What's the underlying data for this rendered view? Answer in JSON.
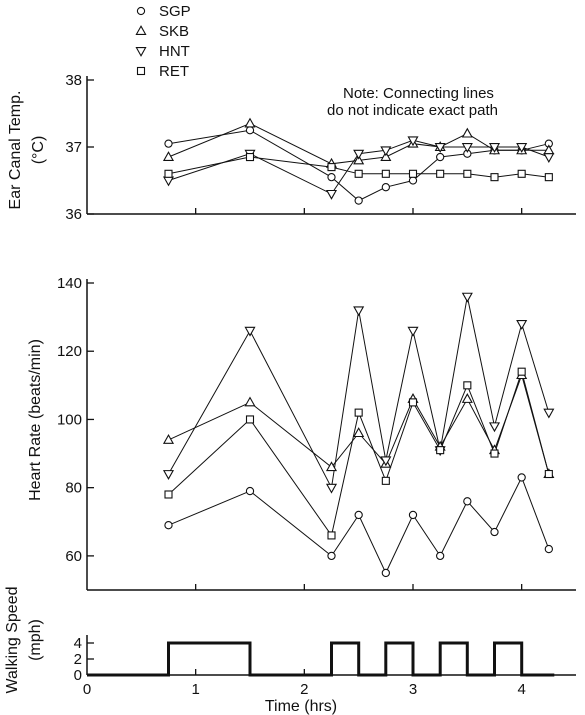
{
  "chart_data": [
    {
      "type": "line",
      "ylabel": "Ear Canal Temp. (°C)",
      "ylabel_lines": [
        "Ear Canal Temp.",
        "(°C)"
      ],
      "ylim": [
        36,
        38
      ],
      "yticks": [
        36,
        37,
        38
      ],
      "xlim": [
        0,
        4.5
      ],
      "note": [
        "Note: Connecting lines",
        "do not indicate exact path"
      ],
      "legend": [
        "SGP",
        "SKB",
        "HNT",
        "RET"
      ],
      "series": [
        {
          "name": "SGP",
          "marker": "circle",
          "x": [
            0.75,
            1.5,
            2.25,
            2.5,
            2.75,
            3.0,
            3.25,
            3.5,
            3.75,
            4.0,
            4.25
          ],
          "y": [
            37.05,
            37.25,
            36.55,
            36.2,
            36.4,
            36.5,
            36.85,
            36.9,
            36.95,
            36.95,
            37.05
          ]
        },
        {
          "name": "SKB",
          "marker": "triangle-up",
          "x": [
            0.75,
            1.5,
            2.25,
            2.5,
            2.75,
            3.0,
            3.25,
            3.5,
            3.75,
            4.0,
            4.25
          ],
          "y": [
            36.85,
            37.35,
            36.75,
            36.8,
            36.85,
            37.05,
            37.0,
            37.2,
            36.95,
            36.95,
            36.95
          ]
        },
        {
          "name": "HNT",
          "marker": "triangle-down",
          "x": [
            0.75,
            1.5,
            2.25,
            2.5,
            2.75,
            3.0,
            3.25,
            3.5,
            3.75,
            4.0,
            4.25
          ],
          "y": [
            36.5,
            36.9,
            36.3,
            36.9,
            36.95,
            37.1,
            37.0,
            37.0,
            37.0,
            37.0,
            36.85
          ]
        },
        {
          "name": "RET",
          "marker": "square",
          "x": [
            0.75,
            1.5,
            2.25,
            2.5,
            2.75,
            3.0,
            3.25,
            3.5,
            3.75,
            4.0,
            4.25
          ],
          "y": [
            36.6,
            36.85,
            36.7,
            36.6,
            36.6,
            36.6,
            36.6,
            36.6,
            36.55,
            36.6,
            36.55
          ]
        }
      ]
    },
    {
      "type": "line",
      "ylabel": "Heart Rate (beats/min)",
      "ylim": [
        50,
        140
      ],
      "yticks": [
        60,
        80,
        100,
        120,
        140
      ],
      "xlim": [
        0,
        4.5
      ],
      "series": [
        {
          "name": "SGP",
          "marker": "circle",
          "x": [
            0.75,
            1.5,
            2.25,
            2.5,
            2.75,
            3.0,
            3.25,
            3.5,
            3.75,
            4.0,
            4.25
          ],
          "y": [
            69,
            79,
            60,
            72,
            55,
            72,
            60,
            76,
            67,
            83,
            62
          ]
        },
        {
          "name": "SKB",
          "marker": "triangle-up",
          "x": [
            0.75,
            1.5,
            2.25,
            2.5,
            2.75,
            3.0,
            3.25,
            3.5,
            3.75,
            4.0,
            4.25
          ],
          "y": [
            94,
            105,
            86,
            96,
            87,
            106,
            92,
            106,
            91,
            113,
            84
          ]
        },
        {
          "name": "HNT",
          "marker": "triangle-down",
          "x": [
            0.75,
            1.5,
            2.25,
            2.5,
            2.75,
            3.0,
            3.25,
            3.5,
            3.75,
            4.0,
            4.25
          ],
          "y": [
            84,
            126,
            80,
            132,
            88,
            126,
            91,
            136,
            98,
            128,
            102
          ]
        },
        {
          "name": "RET",
          "marker": "square",
          "x": [
            0.75,
            1.5,
            2.25,
            2.5,
            2.75,
            3.0,
            3.25,
            3.5,
            3.75,
            4.0,
            4.25
          ],
          "y": [
            78,
            100,
            66,
            102,
            82,
            105,
            91,
            110,
            90,
            114,
            84
          ]
        }
      ]
    },
    {
      "type": "line",
      "ylabel": "Walking Speed (mph)",
      "ylabel_lines": [
        "Walking Speed",
        "(mph)"
      ],
      "ylim": [
        0,
        4.5
      ],
      "yticks": [
        0,
        2,
        4
      ],
      "xlabel": "Time (hrs)",
      "xlim": [
        0,
        4.5
      ],
      "xticks": [
        0,
        1,
        2,
        3,
        4
      ],
      "series": [
        {
          "step": true,
          "x": [
            0,
            0.75,
            0.75,
            1.5,
            1.5,
            2.25,
            2.25,
            2.5,
            2.5,
            2.75,
            2.75,
            3.0,
            3.0,
            3.25,
            3.25,
            3.5,
            3.5,
            3.75,
            3.75,
            4.0,
            4.0,
            4.3
          ],
          "y": [
            0,
            0,
            4,
            4,
            0,
            0,
            4,
            4,
            0,
            0,
            4,
            4,
            0,
            0,
            4,
            4,
            0,
            0,
            4,
            4,
            0,
            0
          ]
        }
      ]
    }
  ]
}
